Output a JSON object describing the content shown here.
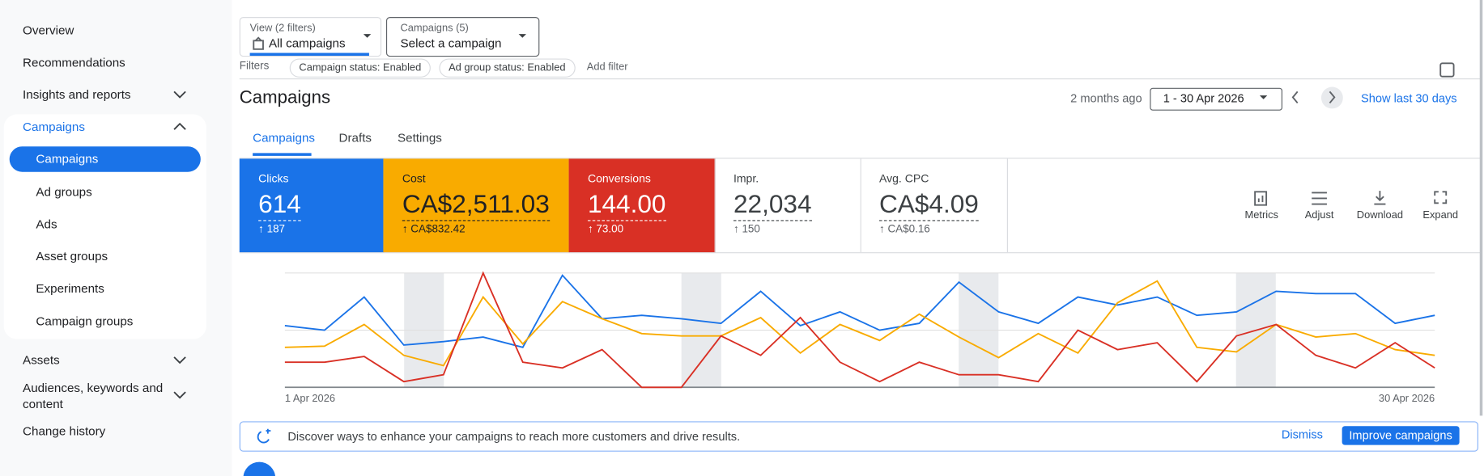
{
  "sidebar": {
    "items": [
      "Overview",
      "Recommendations",
      "Insights and reports",
      "Campaigns",
      "Campaigns",
      "Ad groups",
      "Ads",
      "Asset groups",
      "Experiments",
      "Campaign groups",
      "Assets",
      "Audiences, keywords and content",
      "Change history"
    ]
  },
  "filters": {
    "view_label": "View (2 filters)",
    "view_value": "All campaigns",
    "campaigns_label": "Campaigns (5)",
    "campaigns_value": "Select a campaign",
    "filters_label": "Filters",
    "chips": [
      "Campaign status: Enabled",
      "Ad group status: Enabled"
    ],
    "add": "Add filter"
  },
  "header": {
    "title": "Campaigns",
    "ago": "2 months ago",
    "range": "1 - 30 Apr 2026",
    "show_last": "Show last 30 days"
  },
  "tabs": [
    "Campaigns",
    "Drafts",
    "Settings"
  ],
  "metrics": [
    {
      "label": "Clicks",
      "value": "614",
      "change": "187"
    },
    {
      "label": "Cost",
      "value": "CA$2,511.03",
      "change": "CA$832.42"
    },
    {
      "label": "Conversions",
      "value": "144.00",
      "change": "73.00"
    },
    {
      "label": "Impr.",
      "value": "22,034",
      "change": "150"
    },
    {
      "label": "Avg. CPC",
      "value": "CA$4.09",
      "change": "CA$0.16"
    }
  ],
  "tools": [
    "Metrics",
    "Adjust",
    "Download",
    "Expand"
  ],
  "chart_data": {
    "type": "line",
    "categories": [
      "1 Apr 2026",
      null,
      null,
      null,
      null,
      null,
      null,
      null,
      null,
      null,
      null,
      null,
      null,
      null,
      null,
      null,
      null,
      null,
      null,
      null,
      null,
      null,
      null,
      null,
      null,
      null,
      null,
      null,
      null,
      "30 Apr 2026"
    ],
    "ylim": [
      0,
      100
    ],
    "series": [
      {
        "color": "#1a73e8",
        "values": [
          54,
          50,
          79,
          37,
          40,
          44,
          35,
          98,
          60,
          63,
          60,
          56,
          84,
          54,
          66,
          50,
          56,
          92,
          66,
          56,
          79,
          72,
          79,
          63,
          66,
          84,
          82,
          82,
          56,
          63
        ]
      },
      {
        "color": "#f9ab00",
        "values": [
          35,
          36,
          55,
          28,
          19,
          79,
          38,
          75,
          60,
          47,
          45,
          45,
          61,
          30,
          55,
          41,
          64,
          44,
          26,
          47,
          30,
          74,
          93,
          35,
          31,
          55,
          44,
          47,
          33,
          28
        ]
      },
      {
        "color": "#d93025",
        "values": [
          22,
          22,
          27,
          5,
          11,
          100,
          22,
          17,
          33,
          0,
          0,
          45,
          28,
          61,
          22,
          5,
          22,
          11,
          11,
          5,
          50,
          33,
          39,
          5,
          45,
          55,
          28,
          17,
          39,
          17
        ]
      }
    ]
  },
  "banner": {
    "text": "Discover ways to enhance your campaigns to reach more customers and drive results.",
    "dismiss": "Dismiss",
    "action": "Improve campaigns"
  }
}
